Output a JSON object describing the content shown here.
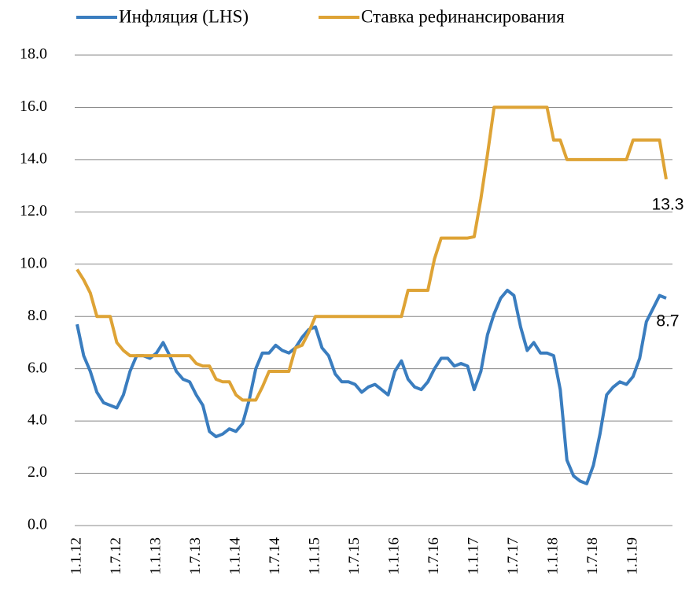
{
  "chart_data": {
    "type": "line",
    "categories": [
      "1.1.12",
      null,
      null,
      null,
      null,
      null,
      "1.7.12",
      null,
      null,
      null,
      null,
      null,
      "1.1.13",
      null,
      null,
      null,
      null,
      null,
      "1.7.13",
      null,
      null,
      null,
      null,
      null,
      "1.1.14",
      null,
      null,
      null,
      null,
      null,
      "1.7.14",
      null,
      null,
      null,
      null,
      null,
      "1.1.15",
      null,
      null,
      null,
      null,
      null,
      "1.7.15",
      null,
      null,
      null,
      null,
      null,
      "1.1.16",
      null,
      null,
      null,
      null,
      null,
      "1.7.16",
      null,
      null,
      null,
      null,
      null,
      "1.1.17",
      null,
      null,
      null,
      null,
      null,
      "1.7.17",
      null,
      null,
      null,
      null,
      null,
      "1.1.18",
      null,
      null,
      null,
      null,
      null,
      "1.7.18",
      null,
      null,
      null,
      null,
      null,
      "1.1.19",
      null,
      null,
      null,
      null,
      null
    ],
    "series": [
      {
        "name": "Инфляция (LHS)",
        "color": "#3a7dbf",
        "values": [
          7.7,
          6.5,
          5.9,
          5.1,
          4.7,
          4.6,
          4.5,
          5.0,
          5.9,
          6.5,
          6.5,
          6.4,
          6.6,
          7.0,
          6.5,
          5.9,
          5.6,
          5.5,
          5.0,
          4.6,
          3.6,
          3.4,
          3.5,
          3.7,
          3.6,
          3.9,
          4.8,
          6.0,
          6.6,
          6.6,
          6.9,
          6.7,
          6.6,
          6.8,
          7.2,
          7.5,
          7.6,
          6.8,
          6.5,
          5.8,
          5.5,
          5.5,
          5.4,
          5.1,
          5.3,
          5.4,
          5.2,
          5.0,
          5.9,
          6.3,
          5.6,
          5.3,
          5.2,
          5.5,
          6.0,
          6.4,
          6.4,
          6.1,
          6.2,
          6.1,
          5.2,
          5.9,
          7.3,
          8.1,
          8.7,
          9.0,
          8.8,
          7.6,
          6.7,
          7.0,
          6.6,
          6.6,
          6.5,
          5.2,
          2.5,
          1.9,
          1.7,
          1.6,
          2.3,
          3.5,
          5.0,
          5.3,
          5.5,
          5.4,
          5.7,
          6.4,
          7.8,
          8.3,
          8.8,
          8.7
        ],
        "value_labels": [
          null,
          null,
          null,
          null,
          null,
          null,
          null,
          null,
          null,
          null,
          null,
          null,
          null,
          null,
          null,
          null,
          null,
          null,
          null,
          null,
          null,
          null,
          null,
          null,
          null,
          null,
          null,
          null,
          null,
          null,
          null,
          null,
          null,
          null,
          null,
          null,
          null,
          null,
          null,
          null,
          null,
          null,
          null,
          null,
          null,
          null,
          null,
          null,
          null,
          null,
          null,
          null,
          null,
          null,
          null,
          null,
          null,
          null,
          null,
          null,
          null,
          null,
          null,
          null,
          null,
          null,
          null,
          null,
          null,
          null,
          null,
          null,
          null,
          null,
          null,
          null,
          null,
          null,
          null,
          null,
          null,
          null,
          null,
          null,
          null,
          null,
          null,
          null,
          null,
          "8.7"
        ]
      },
      {
        "name": "Ставка рефинансирования",
        "color": "#dea335",
        "values": [
          9.8,
          9.4,
          8.9,
          8.0,
          8.0,
          8.0,
          7.0,
          6.7,
          6.5,
          6.5,
          6.5,
          6.5,
          6.5,
          6.5,
          6.5,
          6.5,
          6.5,
          6.5,
          6.2,
          6.1,
          6.1,
          5.6,
          5.5,
          5.5,
          5.0,
          4.8,
          4.8,
          4.8,
          5.3,
          5.9,
          5.9,
          5.9,
          5.9,
          6.8,
          6.9,
          7.4,
          8.0,
          8.0,
          8.0,
          8.0,
          8.0,
          8.0,
          8.0,
          8.0,
          8.0,
          8.0,
          8.0,
          8.0,
          8.0,
          8.0,
          9.0,
          9.0,
          9.0,
          9.0,
          10.2,
          11.0,
          11.0,
          11.0,
          11.0,
          11.0,
          11.05,
          12.5,
          14.2,
          16.0,
          16.0,
          16.0,
          16.0,
          16.0,
          16.0,
          16.0,
          16.0,
          16.0,
          14.75,
          14.75,
          14.0,
          14.0,
          14.0,
          14.0,
          14.0,
          14.0,
          14.0,
          14.0,
          14.0,
          14.0,
          14.75,
          14.75,
          14.75,
          14.75,
          14.75,
          13.25
        ],
        "value_labels": [
          null,
          null,
          null,
          null,
          null,
          null,
          null,
          null,
          null,
          null,
          null,
          null,
          null,
          null,
          null,
          null,
          null,
          null,
          null,
          null,
          null,
          null,
          null,
          null,
          null,
          null,
          null,
          null,
          null,
          null,
          null,
          null,
          null,
          null,
          null,
          null,
          null,
          null,
          null,
          null,
          null,
          null,
          null,
          null,
          null,
          null,
          null,
          null,
          null,
          null,
          null,
          null,
          null,
          null,
          null,
          null,
          null,
          null,
          null,
          null,
          null,
          null,
          null,
          null,
          null,
          null,
          null,
          null,
          null,
          null,
          null,
          null,
          null,
          null,
          null,
          null,
          null,
          null,
          null,
          null,
          null,
          null,
          null,
          null,
          null,
          null,
          null,
          null,
          null,
          "13.3"
        ]
      }
    ],
    "ylim": [
      0,
      18
    ],
    "yticks": [
      {
        "value": 0,
        "label": "0.0"
      },
      {
        "value": 2,
        "label": "2.0"
      },
      {
        "value": 4,
        "label": "4.0"
      },
      {
        "value": 6,
        "label": "6.0"
      },
      {
        "value": 8,
        "label": "8.0"
      },
      {
        "value": 10,
        "label": "10.0"
      },
      {
        "value": 12,
        "label": "12.0"
      },
      {
        "value": 14,
        "label": "14.0"
      },
      {
        "value": 16,
        "label": "16.0"
      },
      {
        "value": 18,
        "label": "18.0"
      }
    ],
    "grid": true,
    "legend": "top"
  }
}
